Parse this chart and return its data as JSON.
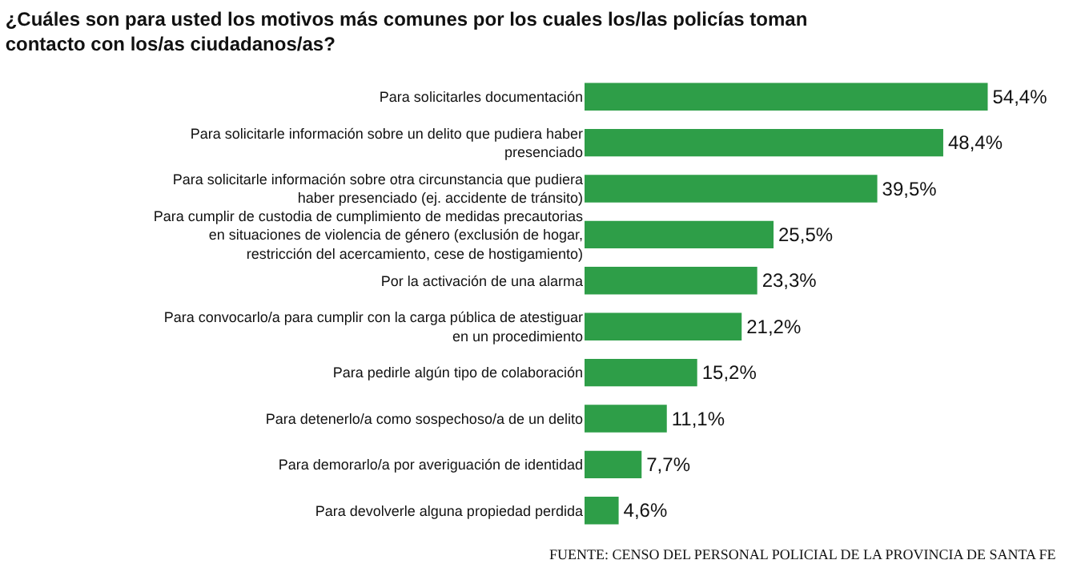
{
  "chart_data": {
    "type": "bar",
    "orientation": "horizontal",
    "title": "¿Cuáles son para usted los motivos más comunes por los cuales los/las policías toman contacto con los/as ciudadanos/as?",
    "categories": [
      "Para solicitarles documentación",
      "Para solicitarle información sobre un delito que pudiera haber presenciado",
      "Para solicitarle información sobre otra circunstancia que pudiera haber presenciado (ej. accidente de tránsito)",
      "Para cumplir de custodia de cumplimiento de medidas precautorias en situaciones de violencia de género (exclusión de hogar, restricción del acercamiento, cese de hostigamiento)",
      "Por la activación de una alarma",
      "Para convocarlo/a para cumplir con la carga pública de atestiguar en un procedimiento",
      "Para pedirle algún tipo de colaboración",
      "Para detenerlo/a como sospechoso/a de un delito",
      "Para demorarlo/a por averiguación de identidad",
      "Para devolverle alguna propiedad perdida"
    ],
    "values": [
      54.4,
      48.4,
      39.5,
      25.5,
      23.3,
      21.2,
      15.2,
      11.1,
      7.7,
      4.6
    ],
    "value_labels": [
      "54,4%",
      "48,4%",
      "39,5%",
      "25,5%",
      "23,3%",
      "21,2%",
      "15,2%",
      "11,1%",
      "7,7%",
      "4,6%"
    ],
    "color": "#2e9e48",
    "tick_labels": "y",
    "grid": false,
    "annotations": [
      "FUENTE: CENSO DEL PERSONAL POLICIAL DE LA PROVINCIA DE SANTA FE"
    ]
  }
}
